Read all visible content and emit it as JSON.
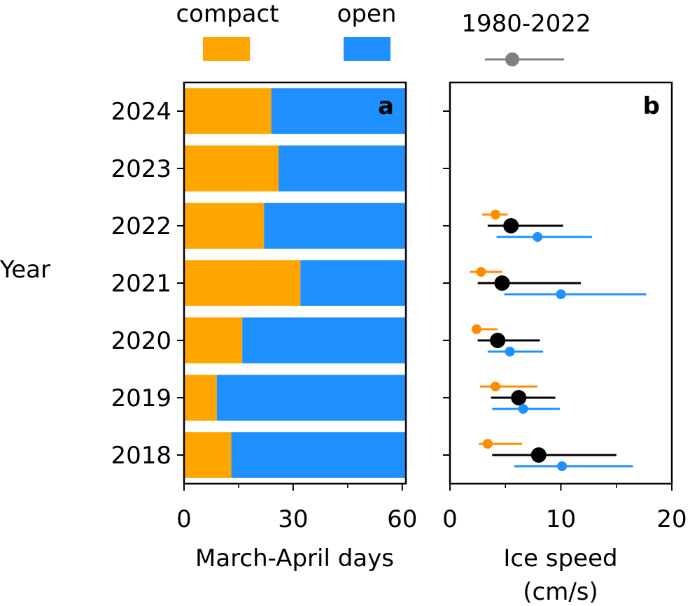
{
  "colors": {
    "compact": "#FFA500",
    "open": "#1E90FF",
    "reference": "#808080",
    "combined": "#000000",
    "compact_marker": "#FF8C00",
    "frame": "#000000"
  },
  "legend": {
    "compact_label": "compact",
    "open_label": "open",
    "reference_label": "1980-2022"
  },
  "shared": {
    "ylabel": "Year"
  },
  "chart_data": [
    {
      "type": "bar",
      "orientation": "horizontal-stacked",
      "panel_label": "a",
      "xlabel": "March-April days",
      "xlim": [
        0,
        61
      ],
      "xticks": [
        0,
        30,
        60
      ],
      "xminor": [
        15,
        45
      ],
      "categories": [
        "2018",
        "2019",
        "2020",
        "2021",
        "2022",
        "2023",
        "2024"
      ],
      "series": [
        {
          "name": "compact",
          "values": [
            13,
            9,
            16,
            32,
            22,
            26,
            24
          ]
        },
        {
          "name": "open",
          "values": [
            48,
            52,
            45,
            29,
            39,
            35,
            37
          ]
        }
      ]
    },
    {
      "type": "scatter",
      "subtype": "dot-with-error-bars",
      "panel_label": "b",
      "xlabel": "Ice speed",
      "xlabel_unit": "(cm/s)",
      "xlim": [
        0,
        20
      ],
      "xticks": [
        0,
        10,
        20
      ],
      "xminor": [
        5,
        15
      ],
      "categories": [
        "2018",
        "2019",
        "2020",
        "2021",
        "2022",
        "2023",
        "2024"
      ],
      "series": [
        {
          "name": "compact",
          "points": [
            {
              "year": "2018",
              "mean": 3.4,
              "low": 2.6,
              "high": 6.5
            },
            {
              "year": "2019",
              "mean": 4.1,
              "low": 2.7,
              "high": 7.9
            },
            {
              "year": "2020",
              "mean": 2.4,
              "low": 2.2,
              "high": 4.3
            },
            {
              "year": "2021",
              "mean": 2.8,
              "low": 1.8,
              "high": 4.7
            },
            {
              "year": "2022",
              "mean": 4.1,
              "low": 2.9,
              "high": 5.2
            }
          ]
        },
        {
          "name": "1980-2022",
          "points": [
            {
              "year": "2018",
              "mean": 8.0,
              "low": 3.8,
              "high": 15.0
            },
            {
              "year": "2019",
              "mean": 6.2,
              "low": 3.7,
              "high": 9.5
            },
            {
              "year": "2020",
              "mean": 4.3,
              "low": 2.5,
              "high": 8.1
            },
            {
              "year": "2021",
              "mean": 4.7,
              "low": 2.5,
              "high": 11.8
            },
            {
              "year": "2022",
              "mean": 5.5,
              "low": 3.4,
              "high": 10.2
            }
          ]
        },
        {
          "name": "open",
          "points": [
            {
              "year": "2018",
              "mean": 10.1,
              "low": 5.8,
              "high": 16.5
            },
            {
              "year": "2019",
              "mean": 6.6,
              "low": 3.8,
              "high": 9.9
            },
            {
              "year": "2020",
              "mean": 5.4,
              "low": 3.4,
              "high": 8.4
            },
            {
              "year": "2021",
              "mean": 10.0,
              "low": 4.9,
              "high": 17.7
            },
            {
              "year": "2022",
              "mean": 7.9,
              "low": 4.2,
              "high": 12.8
            }
          ]
        }
      ],
      "legend_sample": {
        "mean": 5.5,
        "low": 3.0,
        "high": 10.2
      }
    }
  ]
}
